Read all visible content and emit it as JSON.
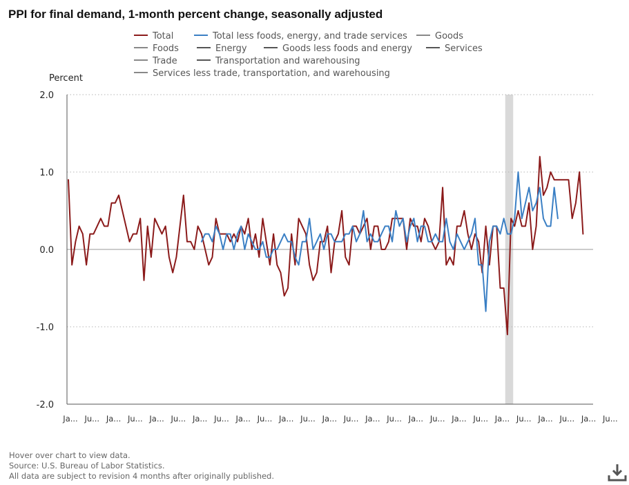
{
  "chart_data": {
    "type": "line",
    "title": "PPI for final demand, 1-month percent change, seasonally adjusted",
    "ylabel": "Percent",
    "ylim": [
      -2.0,
      2.0
    ],
    "yticks": [
      "2.0",
      "1.0",
      "0.0",
      "-1.0",
      "-2.0"
    ],
    "ytick_values": [
      2.0,
      1.0,
      0.0,
      -1.0,
      -2.0
    ],
    "grid": "horizontal dotted",
    "legend_position": "top",
    "x_tick_labels": [
      "Ja...",
      "Ju...",
      "Ja...",
      "Ju...",
      "Ja...",
      "Ju...",
      "Ja...",
      "Ju...",
      "Ja...",
      "Ju...",
      "Ja...",
      "Ju...",
      "Ja...",
      "Ju...",
      "Ja...",
      "Ju...",
      "Ja...",
      "Ju...",
      "Ja...",
      "Ju...",
      "Ja...",
      "Ju...",
      "Ja...",
      "Ju...",
      "Ja...",
      "Ju..."
    ],
    "months_per_tick": 6,
    "recession_months": [
      122,
      123
    ],
    "legend": [
      {
        "name": "Total",
        "color": "#8b1a1a"
      },
      {
        "name": "Total less foods, energy, and trade services",
        "color": "#3a7fc4"
      },
      {
        "name": "Goods",
        "color": "#888888"
      },
      {
        "name": "Foods",
        "color": "#888888"
      },
      {
        "name": "Energy",
        "color": "#555555"
      },
      {
        "name": "Goods less foods and energy",
        "color": "#555555"
      },
      {
        "name": "Services",
        "color": "#555555"
      },
      {
        "name": "Trade",
        "color": "#888888"
      },
      {
        "name": "Transportation and warehousing",
        "color": "#555555"
      },
      {
        "name": "Services less trade, transportation, and warehousing",
        "color": "#888888"
      }
    ],
    "series": [
      {
        "name": "Total",
        "color": "#8b1a1a",
        "start_index": 0,
        "values": [
          0.9,
          -0.2,
          0.1,
          0.3,
          0.2,
          -0.2,
          0.2,
          0.2,
          0.3,
          0.4,
          0.3,
          0.3,
          0.6,
          0.6,
          0.7,
          0.5,
          0.3,
          0.1,
          0.2,
          0.2,
          0.4,
          -0.4,
          0.3,
          -0.1,
          0.4,
          0.3,
          0.2,
          0.3,
          -0.1,
          -0.3,
          -0.1,
          0.3,
          0.7,
          0.1,
          0.1,
          0.0,
          0.3,
          0.2,
          0.0,
          -0.2,
          -0.1,
          0.4,
          0.2,
          0.2,
          0.2,
          0.1,
          0.2,
          0.1,
          0.3,
          0.2,
          0.4,
          0.0,
          0.2,
          -0.1,
          0.4,
          0.1,
          -0.2,
          0.2,
          -0.2,
          -0.3,
          -0.6,
          -0.5,
          0.2,
          -0.2,
          0.4,
          0.3,
          0.2,
          -0.2,
          -0.4,
          -0.3,
          0.1,
          0.1,
          0.3,
          -0.3,
          0.1,
          0.2,
          0.5,
          -0.1,
          -0.2,
          0.3,
          0.3,
          0.2,
          0.3,
          0.4,
          0.0,
          0.3,
          0.3,
          0.0,
          0.0,
          0.1,
          0.4,
          0.4,
          0.4,
          0.4,
          0.0,
          0.4,
          0.3,
          0.3,
          0.1,
          0.4,
          0.3,
          0.1,
          0.0,
          0.1,
          0.8,
          -0.2,
          -0.1,
          -0.2,
          0.3,
          0.3,
          0.5,
          0.2,
          0.0,
          0.2,
          0.1,
          -0.3,
          0.3,
          -0.2,
          0.3,
          0.3,
          -0.5,
          -0.5,
          -1.1,
          0.4,
          0.3,
          0.5,
          0.3,
          0.3,
          0.6,
          0.0,
          0.3,
          1.2,
          0.7,
          0.8,
          1.0,
          0.9,
          0.9,
          0.9,
          0.9,
          0.9,
          0.4,
          0.6,
          1.0,
          0.2
        ]
      },
      {
        "name": "Total less foods, energy, and trade services",
        "color": "#3a7fc4",
        "start_index": 37,
        "values": [
          0.1,
          0.2,
          0.2,
          0.1,
          0.3,
          0.2,
          0.0,
          0.2,
          0.2,
          0.0,
          0.2,
          0.3,
          0.0,
          0.2,
          0.1,
          0.0,
          0.0,
          0.1,
          -0.1,
          -0.1,
          0.0,
          0.0,
          0.1,
          0.2,
          0.1,
          0.1,
          -0.1,
          -0.2,
          0.1,
          0.1,
          0.4,
          0.0,
          0.1,
          0.2,
          0.0,
          0.2,
          0.2,
          0.1,
          0.1,
          0.1,
          0.2,
          0.2,
          0.3,
          0.1,
          0.2,
          0.5,
          0.1,
          0.2,
          0.1,
          0.1,
          0.2,
          0.3,
          0.3,
          0.1,
          0.5,
          0.3,
          0.4,
          0.1,
          0.3,
          0.4,
          0.1,
          0.3,
          0.3,
          0.1,
          0.1,
          0.2,
          0.1,
          0.1,
          0.4,
          0.1,
          0.0,
          0.2,
          0.1,
          0.0,
          0.1,
          0.2,
          0.4,
          -0.2,
          -0.2,
          -0.8,
          0.1,
          0.3,
          0.3,
          0.2,
          0.4,
          0.2,
          0.2,
          0.4,
          1.0,
          0.4,
          0.6,
          0.8,
          0.5,
          0.6,
          0.8,
          0.4,
          0.3,
          0.3,
          0.8,
          0.4
        ]
      }
    ]
  },
  "footer": {
    "hover_hint": "Hover over chart to view data.",
    "source": "Source: U.S. Bureau of Labor Statistics.",
    "revision_note": "All data are subject to revision 4 months after originally published."
  },
  "download_icon_name": "download-icon"
}
